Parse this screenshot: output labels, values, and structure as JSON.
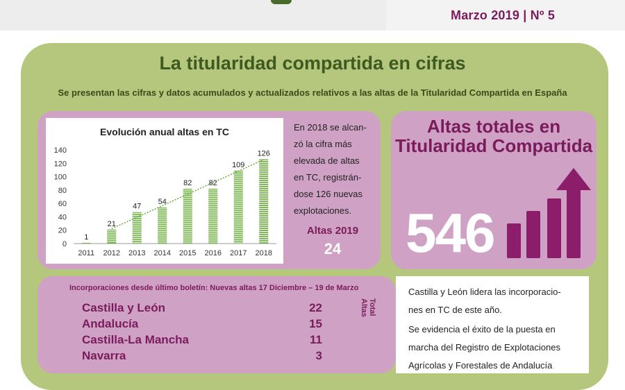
{
  "header": {
    "issue": "Marzo 2019 | Nº 5"
  },
  "main": {
    "title": "La titularidad compartida en cifras",
    "subtitle": "Se presentan las cifras y datos acumulados y actualizados relativos a las altas de la Titularidad Compartida en España"
  },
  "chart_data": {
    "type": "bar",
    "title": "Evolución anual  altas en TC",
    "categories": [
      "2011",
      "2012",
      "2013",
      "2014",
      "2015",
      "2016",
      "2017",
      "2018"
    ],
    "values": [
      1,
      21,
      47,
      54,
      82,
      82,
      109,
      126
    ],
    "ylim": [
      0,
      140
    ],
    "yticks": [
      0,
      20,
      40,
      60,
      80,
      100,
      120,
      140
    ],
    "trendline": true,
    "bar_color": "#6aaa3a",
    "grid": false
  },
  "note": {
    "lines": [
      "En 2018 se alcan-",
      "zó la cifra más",
      "elevada de altas",
      "en TC, registrán-",
      "dose 126 nuevas",
      "explotaciones."
    ]
  },
  "altas2019": {
    "label": "Altas 2019",
    "value": "24"
  },
  "totals": {
    "title_line1": "Altas totales en",
    "title_line2": "Titularidad Compartida",
    "value": "546"
  },
  "incorporaciones": {
    "heading": "Incorporaciones desde último boletín: Nuevas altas 17 Diciembre – 19 de Marzo",
    "rows": [
      {
        "name": "Castilla y León",
        "value": "22"
      },
      {
        "name": "Andalucía",
        "value": "15"
      },
      {
        "name": "Castilla-La Mancha",
        "value": "11"
      },
      {
        "name": "Navarra",
        "value": "3"
      }
    ],
    "vertical_label_1": "Total",
    "vertical_label_2": "Altas"
  },
  "side_text": {
    "p1_line1": "Castilla y León lidera las incorporacio-",
    "p1_line2": "nes en TC  de este año.",
    "p2_line1": "Se evidencia el éxito de la puesta en",
    "p2_line2": "marcha del Registro de Explotaciones",
    "p2_line3": "Agrícolas y Forestales de Andalucía"
  },
  "colors": {
    "accent": "#7a1b5c",
    "panel_green": "#b5c77c",
    "box_pink": "#cfa1c5",
    "title_green": "#3f5a20"
  }
}
